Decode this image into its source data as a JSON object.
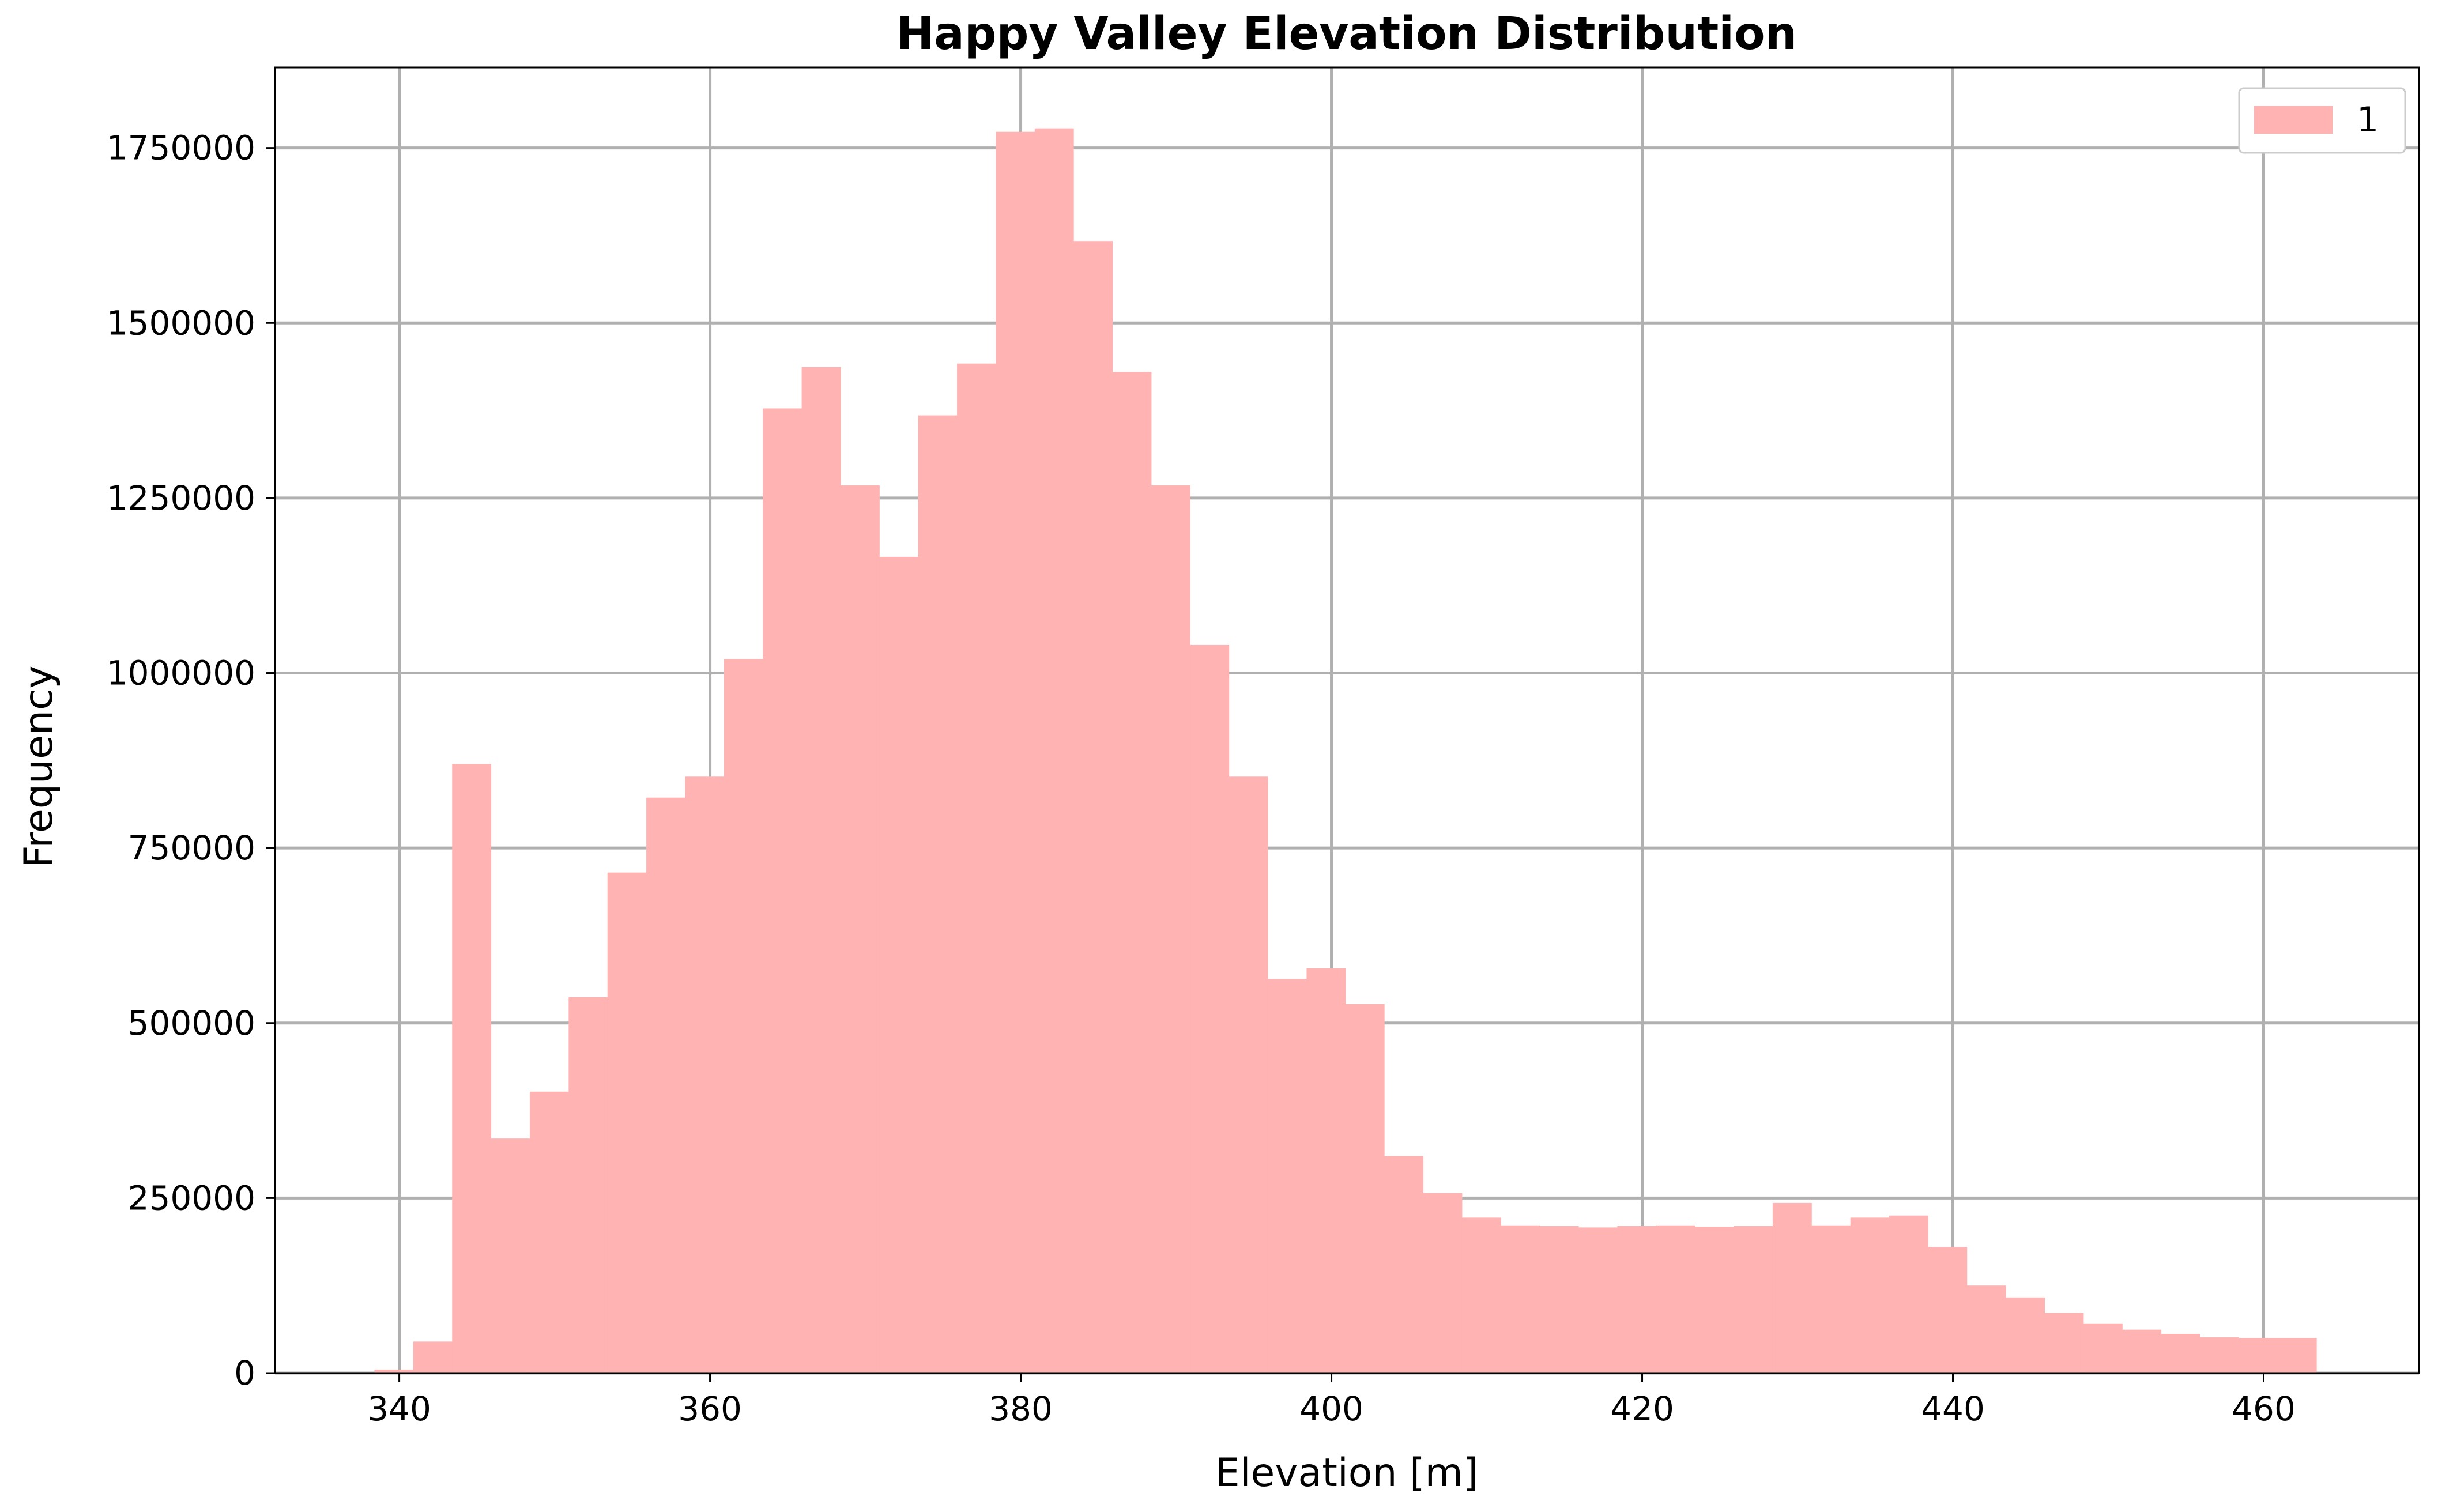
{
  "chart_data": {
    "type": "bar",
    "title": "Happy Valley Elevation Distribution",
    "xlabel": "Elevation [m]",
    "ylabel": "Frequency",
    "xlim": [
      332,
      470
    ],
    "ylim": [
      0,
      1865000
    ],
    "xticks": [
      340,
      360,
      380,
      400,
      420,
      440,
      460
    ],
    "yticks": [
      0,
      250000,
      500000,
      750000,
      1000000,
      1250000,
      1500000,
      1750000
    ],
    "grid": true,
    "legend": {
      "placement": "top-right",
      "entries": [
        {
          "label": "1",
          "color": "#ffb3b3"
        }
      ]
    },
    "bar_color": "#ffb3b3",
    "bin_start": 338.4,
    "bin_width": 2.5,
    "values": [
      5000,
      45000,
      870000,
      335000,
      402000,
      537000,
      715000,
      822000,
      852000,
      1020000,
      1378000,
      1437000,
      1268000,
      1166000,
      1368000,
      1442000,
      1773000,
      1778000,
      1617000,
      1430000,
      1268000,
      1040000,
      852000,
      563000,
      578000,
      527000,
      310000,
      257000,
      222000,
      211000,
      210000,
      208000,
      210000,
      211000,
      209000,
      210000,
      243000,
      211000,
      222000,
      225000,
      180000,
      125000,
      108000,
      86000,
      71000,
      62000,
      56000,
      51000,
      50000,
      50000
    ]
  }
}
